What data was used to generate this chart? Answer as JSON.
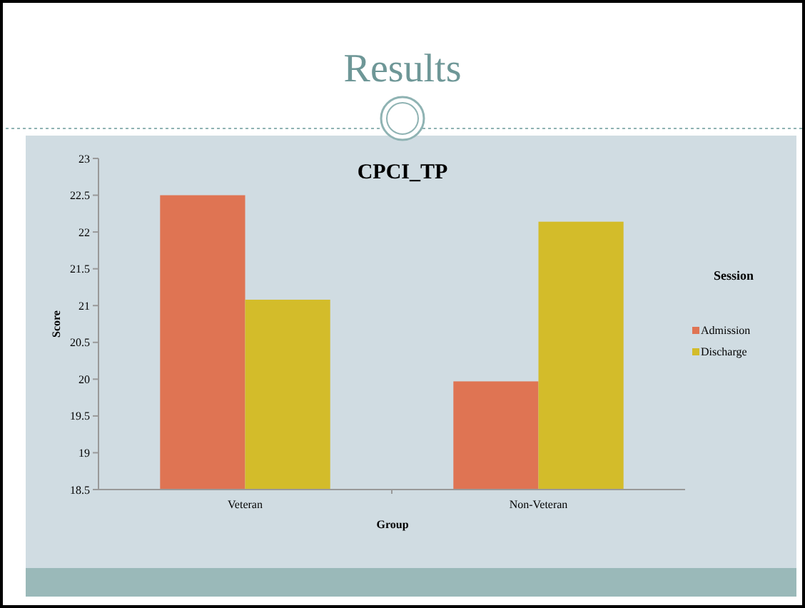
{
  "chart_data": {
    "type": "bar",
    "title": "Results",
    "subtitle": "CPCI_TP",
    "xlabel": "Group",
    "ylabel": "Score",
    "legend_title": "Session",
    "legend": "right",
    "categories": [
      "Veteran",
      "Non-Veteran"
    ],
    "series": [
      {
        "name": "Admission",
        "color": "#df7453",
        "values": [
          22.5,
          19.97
        ]
      },
      {
        "name": "Discharge",
        "color": "#d3bc2a",
        "values": [
          21.08,
          22.14
        ]
      }
    ],
    "ylim": [
      18.5,
      23
    ],
    "yticks": [
      18.5,
      19,
      19.5,
      20,
      20.5,
      21,
      21.5,
      22,
      22.5,
      23
    ],
    "grid": false
  }
}
